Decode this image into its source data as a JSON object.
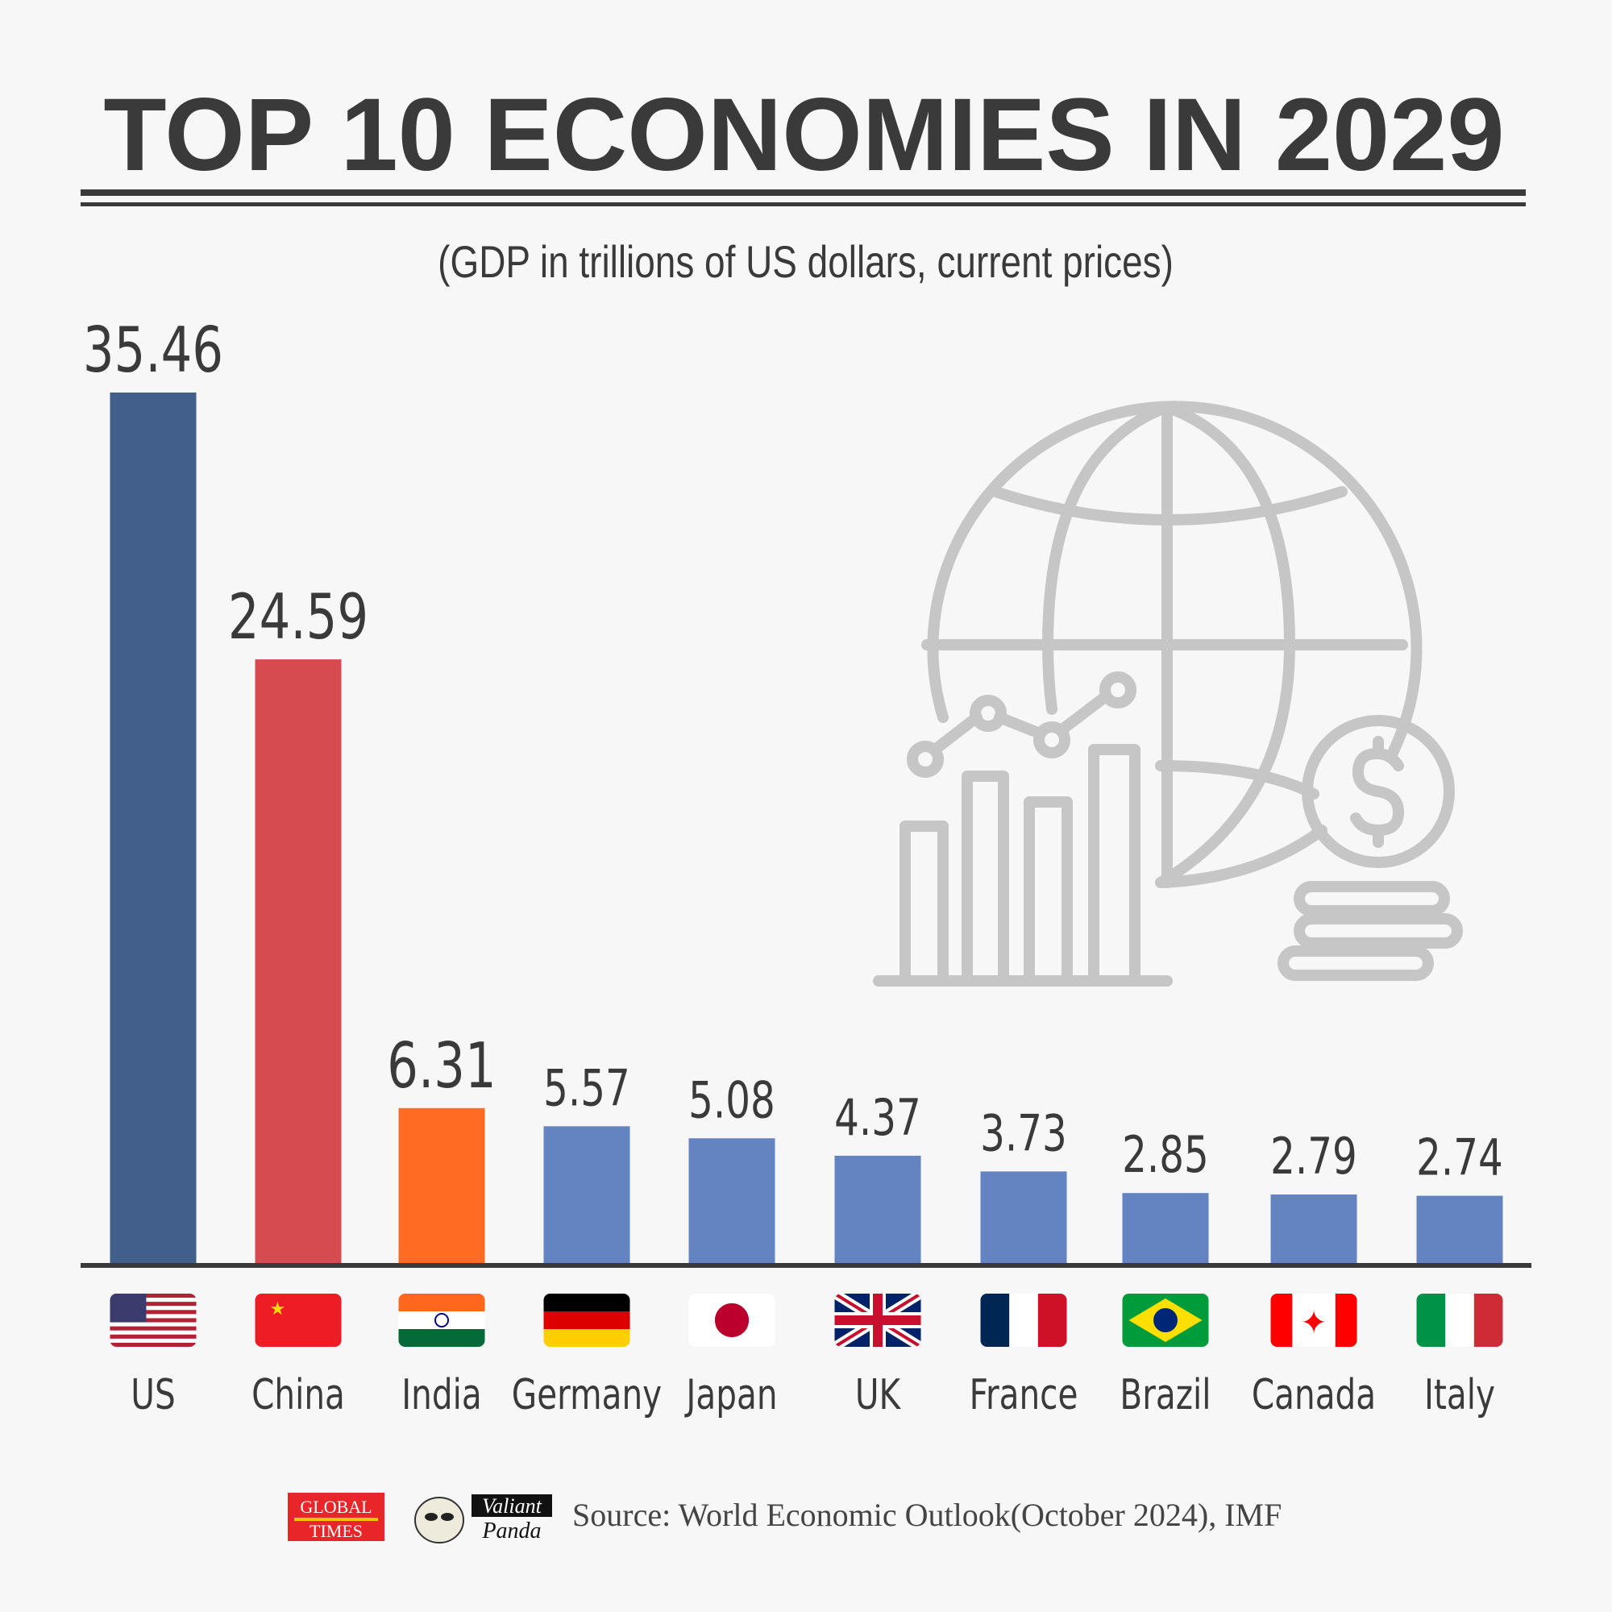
{
  "title": "TOP 10 ECONOMIES IN 2029",
  "subtitle": "(GDP in trillions of US dollars, current prices)",
  "chart_data": {
    "type": "bar",
    "title": "TOP 10 ECONOMIES IN 2029",
    "subtitle": "(GDP in trillions of US dollars, current prices)",
    "categories": [
      "US",
      "China",
      "India",
      "Germany",
      "Japan",
      "UK",
      "France",
      "Brazil",
      "Canada",
      "Italy"
    ],
    "values": [
      35.46,
      24.59,
      6.31,
      5.57,
      5.08,
      4.37,
      3.73,
      2.85,
      2.79,
      2.74
    ],
    "value_labels": [
      "35.46",
      "24.59",
      "6.31",
      "5.57",
      "5.08",
      "4.37",
      "3.73",
      "2.85",
      "2.79",
      "2.74"
    ],
    "colors": [
      "#425e8b",
      "#d64b4f",
      "#ff6b22",
      "#6384c0",
      "#6384c0",
      "#6384c0",
      "#6384c0",
      "#6384c0",
      "#6384c0",
      "#6384c0"
    ],
    "ylim": [
      0,
      36
    ],
    "grid": false,
    "legend": "none",
    "category_icons": [
      "us-flag",
      "china-flag",
      "india-flag",
      "germany-flag",
      "japan-flag",
      "uk-flag",
      "france-flag",
      "brazil-flag",
      "canada-flag",
      "italy-flag"
    ]
  },
  "decoration_icon": "globe-growth-chart-dollar-icon",
  "footer": {
    "logo1": "GLOBAL TIMES",
    "logo2": "Valiant Panda",
    "source": "Source: World Economic Outlook(October 2024), IMF"
  }
}
